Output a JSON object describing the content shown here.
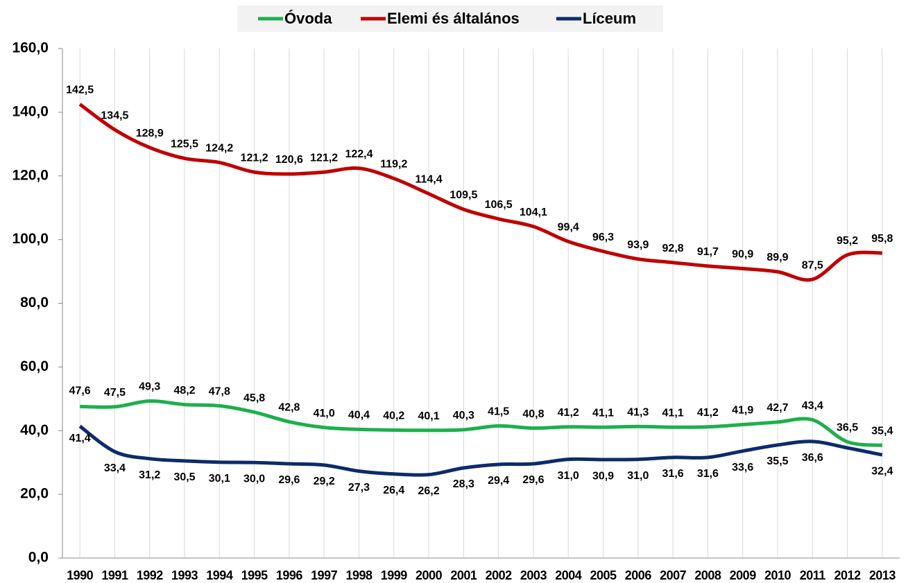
{
  "chart_data": {
    "type": "line",
    "categories": [
      "1990",
      "1991",
      "1992",
      "1993",
      "1994",
      "1995",
      "1996",
      "1997",
      "1998",
      "1999",
      "2000",
      "2001",
      "2002",
      "2003",
      "2004",
      "2005",
      "2006",
      "2007",
      "2008",
      "2009",
      "2010",
      "2011",
      "2012",
      "2013"
    ],
    "series": [
      {
        "name": "Óvoda",
        "color": "#1db04b",
        "values": [
          47.6,
          47.5,
          49.3,
          48.2,
          47.8,
          45.8,
          42.8,
          41.0,
          40.4,
          40.2,
          40.1,
          40.3,
          41.5,
          40.8,
          41.2,
          41.1,
          41.3,
          41.1,
          41.2,
          41.9,
          42.7,
          43.4,
          36.5,
          35.4
        ],
        "value_labels": [
          "47,6",
          "47,5",
          "49,3",
          "48,2",
          "47,8",
          "45,8",
          "42,8",
          "41,0",
          "40,4",
          "40,2",
          "40,1",
          "40,3",
          "41,5",
          "40,8",
          "41,2",
          "41,1",
          "41,3",
          "41,1",
          "41,2",
          "41,9",
          "42,7",
          "43,4",
          "36,5",
          "35,4"
        ]
      },
      {
        "name": "Elemi és általános",
        "color": "#c00000",
        "values": [
          142.5,
          134.5,
          128.9,
          125.5,
          124.2,
          121.2,
          120.6,
          121.2,
          122.4,
          119.2,
          114.4,
          109.5,
          106.5,
          104.1,
          99.4,
          96.3,
          93.9,
          92.8,
          91.7,
          90.9,
          89.9,
          87.5,
          95.2,
          95.8
        ],
        "value_labels": [
          "142,5",
          "134,5",
          "128,9",
          "125,5",
          "124,2",
          "121,2",
          "120,6",
          "121,2",
          "122,4",
          "119,2",
          "114,4",
          "109,5",
          "106,5",
          "104,1",
          "99,4",
          "96,3",
          "93,9",
          "92,8",
          "91,7",
          "90,9",
          "89,9",
          "87,5",
          "95,2",
          "95,8"
        ]
      },
      {
        "name": "Líceum",
        "color": "#0d2b6b",
        "values": [
          41.4,
          33.4,
          31.2,
          30.5,
          30.1,
          30.0,
          29.6,
          29.2,
          27.3,
          26.4,
          26.2,
          28.3,
          29.4,
          29.6,
          31.0,
          30.9,
          31.0,
          31.6,
          31.6,
          33.6,
          35.5,
          36.6,
          34.6,
          32.4
        ],
        "value_labels": [
          "41,4",
          "33,4",
          "31,2",
          "30,5",
          "30,1",
          "30,0",
          "29,6",
          "29,2",
          "27,3",
          "26,4",
          "26,2",
          "28,3",
          "29,4",
          "29,6",
          "31,0",
          "30,9",
          "31,0",
          "31,6",
          "31,6",
          "33,6",
          "35,5",
          "36,6",
          null,
          "32,4"
        ]
      }
    ],
    "ylim": [
      0,
      160
    ],
    "yticks": [
      {
        "value": 0,
        "label": "0,0"
      },
      {
        "value": 20,
        "label": "20,0"
      },
      {
        "value": 40,
        "label": "40,0"
      },
      {
        "value": 60,
        "label": "60,0"
      },
      {
        "value": 80,
        "label": "80,0"
      },
      {
        "value": 100,
        "label": "100,0"
      },
      {
        "value": 120,
        "label": "120,0"
      },
      {
        "value": 140,
        "label": "140,0"
      },
      {
        "value": 160,
        "label": "160,0"
      }
    ],
    "grid": true,
    "legend": "top"
  }
}
